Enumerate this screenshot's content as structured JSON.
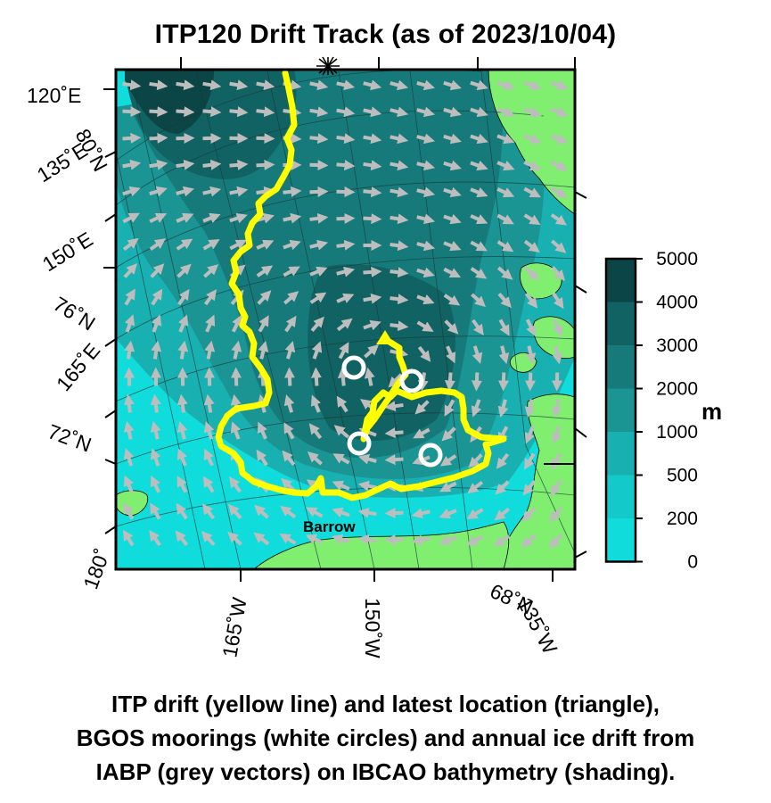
{
  "title": "ITP120 Drift Track (as of 2023/10/04)",
  "map": {
    "lon_labels_left": [
      "120˚E",
      "135˚E",
      "150˚E",
      "165˚E",
      "180˚"
    ],
    "lat_labels_left": [
      "80˚N",
      "76˚N",
      "72˚N"
    ],
    "lon_labels_bottom": [
      "165˚W",
      "150˚W",
      "135˚W"
    ],
    "lat_label_bottom": "68˚N",
    "place_label": "Barrow"
  },
  "colorbar": {
    "ticks": [
      "5000",
      "4000",
      "3000",
      "2000",
      "1000",
      "500",
      "200",
      "0"
    ],
    "unit": "m",
    "colors": [
      "#0b4545",
      "#116262",
      "#167a7a",
      "#1b9494",
      "#18b0b0",
      "#14c9c9",
      "#10dcdc",
      "#0ae6e6"
    ]
  },
  "colors": {
    "land": "#80ef70",
    "track": "#ffff00",
    "vectors": "#bdbdbd",
    "moorings": "#ffffff"
  },
  "caption": [
    "ITP drift (yellow line) and latest location (triangle),",
    "BGOS moorings (white circles) and annual ice drift from",
    "IABP (grey vectors) on IBCAO bathymetry (shading)."
  ]
}
